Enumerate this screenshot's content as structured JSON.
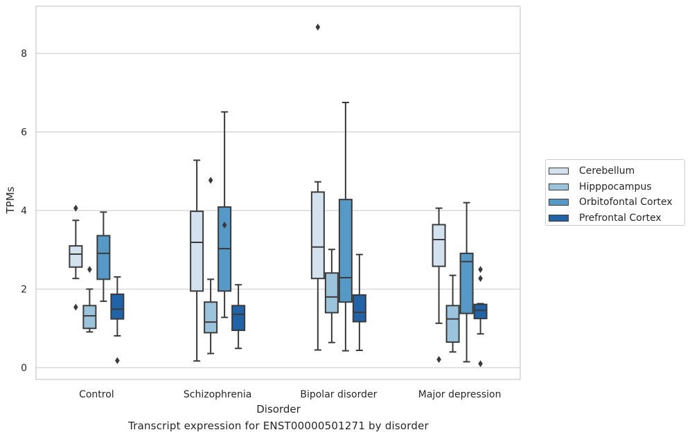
{
  "chart_data": {
    "type": "box",
    "xlabel": "Disorder",
    "ylabel": "TPMs",
    "caption": "Transcript expression for ENST00000501271 by disorder",
    "ylim": [
      -0.3,
      9.2
    ],
    "yticks": [
      0,
      2,
      4,
      6,
      8
    ],
    "grid": "horizontal",
    "legend_position": "right",
    "categories": [
      "Control",
      "Schizophrenia",
      "Bipolar disorder",
      "Major depression"
    ],
    "series": [
      {
        "name": "Cerebellum",
        "color": "#d4e2f0",
        "boxes": [
          {
            "whisker_low": 2.27,
            "q1": 2.56,
            "median": 2.89,
            "q3": 3.1,
            "whisker_high": 3.75,
            "outliers": [
              4.06,
              1.54
            ]
          },
          {
            "whisker_low": 0.17,
            "q1": 1.95,
            "median": 3.19,
            "q3": 3.98,
            "whisker_high": 5.28,
            "outliers": []
          },
          {
            "whisker_low": 0.45,
            "q1": 2.27,
            "median": 3.07,
            "q3": 4.47,
            "whisker_high": 4.73,
            "outliers": [
              8.67
            ]
          },
          {
            "whisker_low": 1.13,
            "q1": 2.58,
            "median": 3.26,
            "q3": 3.64,
            "whisker_high": 4.06,
            "outliers": [
              0.21
            ]
          }
        ]
      },
      {
        "name": "Hipppocampus",
        "color": "#9cc3dc",
        "boxes": [
          {
            "whisker_low": 0.91,
            "q1": 1.0,
            "median": 1.32,
            "q3": 1.58,
            "whisker_high": 2.0,
            "outliers": [
              2.5
            ]
          },
          {
            "whisker_low": 0.36,
            "q1": 0.89,
            "median": 1.16,
            "q3": 1.67,
            "whisker_high": 2.25,
            "outliers": [
              4.77
            ]
          },
          {
            "whisker_low": 0.64,
            "q1": 1.4,
            "median": 1.8,
            "q3": 2.41,
            "whisker_high": 3.01,
            "outliers": []
          },
          {
            "whisker_low": 0.4,
            "q1": 0.65,
            "median": 1.24,
            "q3": 1.58,
            "whisker_high": 2.35,
            "outliers": []
          }
        ]
      },
      {
        "name": "Orbitofontal Cortex",
        "color": "#5699c6",
        "boxes": [
          {
            "whisker_low": 1.69,
            "q1": 2.25,
            "median": 2.91,
            "q3": 3.36,
            "whisker_high": 3.96,
            "outliers": []
          },
          {
            "whisker_low": 1.28,
            "q1": 1.95,
            "median": 3.03,
            "q3": 4.09,
            "whisker_high": 6.51,
            "outliers": [
              3.63
            ]
          },
          {
            "whisker_low": 0.43,
            "q1": 1.67,
            "median": 2.29,
            "q3": 4.28,
            "whisker_high": 6.75,
            "outliers": []
          },
          {
            "whisker_low": 0.15,
            "q1": 1.38,
            "median": 2.7,
            "q3": 2.91,
            "whisker_high": 4.2,
            "outliers": []
          }
        ]
      },
      {
        "name": "Prefrontal Cortex",
        "color": "#2262a6",
        "boxes": [
          {
            "whisker_low": 0.81,
            "q1": 1.24,
            "median": 1.49,
            "q3": 1.87,
            "whisker_high": 2.31,
            "outliers": [
              0.18
            ]
          },
          {
            "whisker_low": 0.49,
            "q1": 0.95,
            "median": 1.36,
            "q3": 1.58,
            "whisker_high": 2.11,
            "outliers": []
          },
          {
            "whisker_low": 0.44,
            "q1": 1.17,
            "median": 1.41,
            "q3": 1.85,
            "whisker_high": 2.88,
            "outliers": []
          },
          {
            "whisker_low": 0.86,
            "q1": 1.25,
            "median": 1.46,
            "q3": 1.61,
            "whisker_high": 1.63,
            "outliers": [
              2.5,
              2.27,
              0.1
            ]
          }
        ]
      }
    ]
  }
}
